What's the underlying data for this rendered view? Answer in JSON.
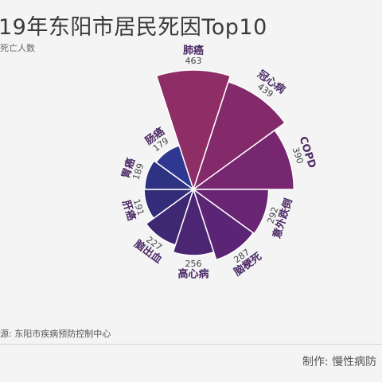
{
  "header": {
    "title": "19年东阳市居民死因Top10",
    "subtitle": "死亡人数"
  },
  "footer": {
    "source": "源: 东阳市疾病预防控制中心",
    "maker": "制作: 慢性病防"
  },
  "chart_data": {
    "type": "rose",
    "categories": [
      "肺癌",
      "冠心病",
      "COPD",
      "意外跌倒",
      "脑梗死",
      "高心病",
      "脑出血",
      "肝癌",
      "胃癌",
      "肠癌"
    ],
    "values": [
      463,
      439,
      390,
      292,
      287,
      256,
      227,
      191,
      189,
      179
    ],
    "colors": [
      "#8f2d66",
      "#84296a",
      "#772770",
      "#692473",
      "#5b2474",
      "#4c2673",
      "#3f2873",
      "#342c78",
      "#2f3283",
      "#2e3890"
    ]
  }
}
